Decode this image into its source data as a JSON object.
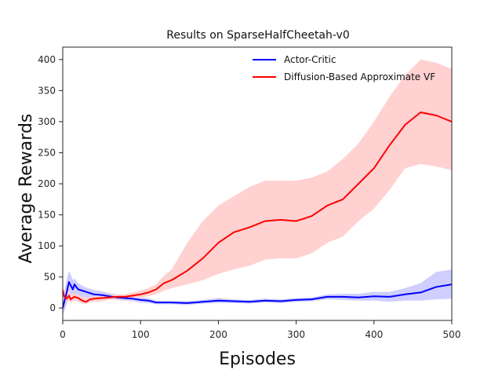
{
  "chart_data": {
    "type": "line",
    "title": "Results on SparseHalfCheetah-v0",
    "xlabel": "Episodes",
    "ylabel": "Average Rewards",
    "xlim": [
      0,
      500
    ],
    "ylim": [
      -20,
      420
    ],
    "xticks": [
      0,
      100,
      200,
      300,
      400,
      500
    ],
    "yticks": [
      0,
      50,
      100,
      150,
      200,
      250,
      300,
      350,
      400
    ],
    "grid": false,
    "legend_position": "top-right",
    "series": [
      {
        "name": "Actor-Critic",
        "color": "#0000ff",
        "band_color": "#c9c9ff",
        "x": [
          0,
          2,
          5,
          8,
          10,
          13,
          15,
          18,
          20,
          25,
          30,
          35,
          40,
          50,
          60,
          70,
          80,
          90,
          100,
          110,
          120,
          140,
          160,
          180,
          200,
          220,
          240,
          260,
          280,
          300,
          320,
          340,
          360,
          380,
          400,
          420,
          440,
          460,
          480,
          500
        ],
        "y": [
          0,
          10,
          25,
          42,
          37,
          30,
          38,
          33,
          30,
          28,
          26,
          24,
          22,
          21,
          19,
          17,
          16,
          15,
          13,
          12,
          9,
          9,
          8,
          10,
          12,
          11,
          10,
          12,
          11,
          13,
          14,
          18,
          18,
          17,
          19,
          18,
          22,
          25,
          34,
          38
        ],
        "upper": [
          5,
          25,
          45,
          60,
          55,
          45,
          48,
          42,
          40,
          36,
          33,
          31,
          29,
          27,
          24,
          22,
          20,
          19,
          17,
          16,
          12,
          11,
          11,
          13,
          16,
          14,
          13,
          15,
          14,
          16,
          17,
          22,
          23,
          23,
          26,
          26,
          32,
          40,
          58,
          62
        ],
        "lower": [
          -10,
          -5,
          5,
          20,
          18,
          15,
          22,
          20,
          18,
          17,
          17,
          16,
          15,
          15,
          14,
          13,
          12,
          11,
          9,
          8,
          6,
          6,
          5,
          7,
          8,
          8,
          7,
          9,
          8,
          10,
          11,
          14,
          13,
          12,
          12,
          10,
          12,
          12,
          14,
          15
        ]
      },
      {
        "name": "Diffusion-Based Approximate VF",
        "color": "#ff0000",
        "band_color": "#ffcccc",
        "x": [
          0,
          2,
          5,
          8,
          10,
          15,
          20,
          25,
          30,
          35,
          40,
          50,
          60,
          70,
          80,
          90,
          100,
          110,
          120,
          130,
          140,
          160,
          180,
          200,
          220,
          240,
          260,
          280,
          300,
          320,
          340,
          360,
          380,
          400,
          420,
          440,
          460,
          480,
          500
        ],
        "y": [
          28,
          18,
          15,
          20,
          14,
          18,
          16,
          12,
          10,
          14,
          15,
          16,
          17,
          18,
          18,
          20,
          22,
          25,
          30,
          40,
          45,
          60,
          80,
          105,
          122,
          130,
          140,
          142,
          140,
          148,
          165,
          175,
          200,
          225,
          262,
          295,
          315,
          310,
          300
        ],
        "upper": [
          35,
          30,
          25,
          28,
          22,
          24,
          22,
          18,
          16,
          18,
          19,
          20,
          21,
          22,
          22,
          25,
          28,
          32,
          38,
          52,
          62,
          105,
          140,
          165,
          180,
          195,
          205,
          205,
          205,
          210,
          220,
          240,
          265,
          300,
          340,
          375,
          400,
          395,
          385
        ],
        "lower": [
          20,
          10,
          8,
          12,
          8,
          12,
          10,
          7,
          6,
          9,
          10,
          11,
          13,
          14,
          14,
          16,
          17,
          19,
          22,
          28,
          32,
          38,
          45,
          55,
          62,
          68,
          78,
          80,
          80,
          88,
          105,
          115,
          140,
          160,
          190,
          225,
          232,
          228,
          222
        ]
      }
    ]
  }
}
